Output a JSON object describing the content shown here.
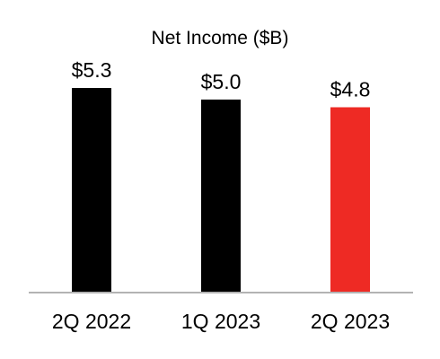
{
  "chart_data": {
    "type": "bar",
    "title": "Net Income ($B)",
    "categories": [
      "2Q 2022",
      "1Q 2023",
      "2Q 2023"
    ],
    "values": [
      5.3,
      5.0,
      4.8
    ],
    "value_labels": [
      "$5.3",
      "$5.0",
      "$4.8"
    ],
    "bar_colors": [
      "#000000",
      "#000000",
      "#ee2a24"
    ],
    "baseline_color": "#b3b3b3",
    "xlabel": "",
    "ylabel": "",
    "ylim": [
      0,
      5.3
    ],
    "grid": false,
    "legend": "none"
  }
}
